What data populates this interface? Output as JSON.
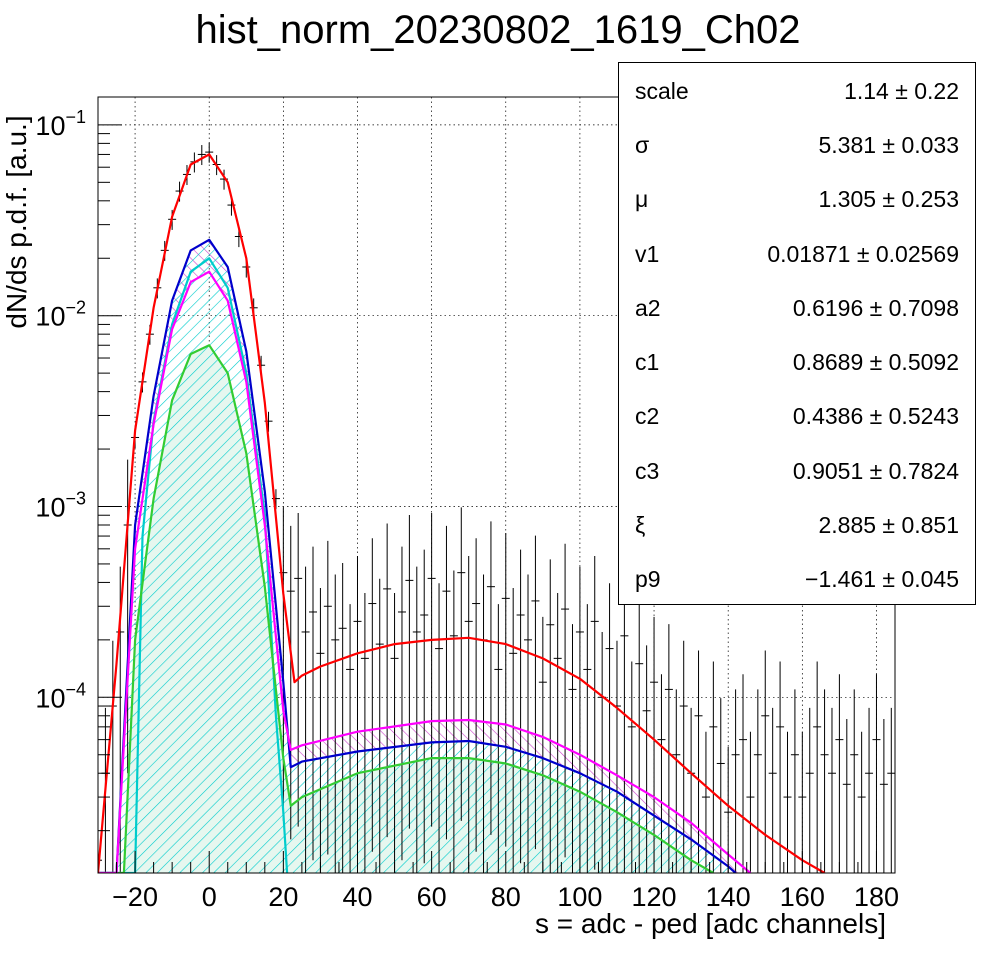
{
  "title": "hist_norm_20230802_1619_Ch02",
  "stats": [
    {
      "name": "scale",
      "value": "1.14 ± 0.22"
    },
    {
      "name": "σ",
      "value": "5.381 ± 0.033"
    },
    {
      "name": "μ",
      "value": "1.305 ± 0.253"
    },
    {
      "name": "v1",
      "value": "0.01871 ± 0.02569"
    },
    {
      "name": "a2",
      "value": "0.6196 ± 0.7098"
    },
    {
      "name": "c1",
      "value": "0.8689 ± 0.5092"
    },
    {
      "name": "c2",
      "value": "0.4386 ± 0.5243"
    },
    {
      "name": "c3",
      "value": "0.9051 ± 0.7824"
    },
    {
      "name": "ξ",
      "value": "2.885 ± 0.851"
    },
    {
      "name": "p9",
      "value": "−1.461 ± 0.045"
    }
  ],
  "chart_data": {
    "type": "line",
    "title": "hist_norm_20230802_1619_Ch02",
    "xlabel": "s = adc - ped [adc channels]",
    "ylabel": "dN/ds p.d.f. [a.u.]",
    "xlim": [
      -30,
      185
    ],
    "ylim": [
      1.2e-05,
      0.14
    ],
    "yscale": "log",
    "grid": true,
    "xticks": [
      -20,
      0,
      20,
      40,
      60,
      80,
      100,
      120,
      140,
      160,
      180
    ],
    "yticks": [
      {
        "value": 0.0001,
        "base": "10",
        "exp": "−4"
      },
      {
        "value": 0.001,
        "base": "10",
        "exp": "−3"
      },
      {
        "value": 0.01,
        "base": "10",
        "exp": "−2"
      },
      {
        "value": 0.1,
        "base": "10",
        "exp": "−1"
      }
    ],
    "colors": {
      "total": "#ff0000",
      "blue": "#0000cc",
      "cyan": "#00cccc",
      "magenta": "#ff00ff",
      "green": "#33cc33",
      "data": "#000000"
    },
    "series": [
      {
        "color": "total",
        "points": [
          [
            -30,
            1.2e-05
          ],
          [
            -25,
            0.00015
          ],
          [
            -20,
            0.0025
          ],
          [
            -15,
            0.011
          ],
          [
            -10,
            0.033
          ],
          [
            -5,
            0.062
          ],
          [
            0,
            0.07
          ],
          [
            5,
            0.05
          ],
          [
            10,
            0.02
          ],
          [
            15,
            0.0035
          ],
          [
            20,
            0.00035
          ],
          [
            23,
            0.00012
          ],
          [
            25,
            0.00013
          ],
          [
            30,
            0.000145
          ],
          [
            40,
            0.00017
          ],
          [
            50,
            0.00019
          ],
          [
            60,
            0.0002
          ],
          [
            70,
            0.000205
          ],
          [
            80,
            0.00019
          ],
          [
            90,
            0.00016
          ],
          [
            100,
            0.000125
          ],
          [
            110,
            8.8e-05
          ],
          [
            120,
            6e-05
          ],
          [
            130,
            4e-05
          ],
          [
            140,
            2.7e-05
          ],
          [
            150,
            1.9e-05
          ],
          [
            160,
            1.4e-05
          ],
          [
            166,
            1.2e-05
          ]
        ]
      },
      {
        "color": "blue",
        "points": [
          [
            -30,
            1.2e-05
          ],
          [
            -25,
            1.2e-05
          ],
          [
            -20,
            0.0008
          ],
          [
            -15,
            0.0038
          ],
          [
            -10,
            0.012
          ],
          [
            -5,
            0.022
          ],
          [
            0,
            0.025
          ],
          [
            5,
            0.018
          ],
          [
            10,
            0.0065
          ],
          [
            15,
            0.0012
          ],
          [
            20,
            0.00012
          ],
          [
            22,
            4.3e-05
          ],
          [
            25,
            4.6e-05
          ],
          [
            40,
            5.2e-05
          ],
          [
            60,
            5.8e-05
          ],
          [
            70,
            5.9e-05
          ],
          [
            80,
            5.5e-05
          ],
          [
            90,
            4.8e-05
          ],
          [
            100,
            4e-05
          ],
          [
            110,
            3.2e-05
          ],
          [
            120,
            2.4e-05
          ],
          [
            130,
            1.8e-05
          ],
          [
            140,
            1.3e-05
          ],
          [
            142,
            1.2e-05
          ]
        ]
      },
      {
        "color": "cyan",
        "points": [
          [
            -30,
            1.2e-05
          ],
          [
            -20,
            1.2e-05
          ],
          [
            -18,
            0.0007
          ],
          [
            -15,
            0.0028
          ],
          [
            -10,
            0.009
          ],
          [
            -5,
            0.017
          ],
          [
            0,
            0.02
          ],
          [
            5,
            0.014
          ],
          [
            10,
            0.005
          ],
          [
            15,
            0.0009
          ],
          [
            18,
            8e-05
          ],
          [
            20,
            2.5e-05
          ],
          [
            21,
            1.2e-05
          ]
        ]
      },
      {
        "color": "magenta",
        "points": [
          [
            -30,
            1.2e-05
          ],
          [
            -25,
            1.2e-05
          ],
          [
            -20,
            0.0006
          ],
          [
            -15,
            0.0027
          ],
          [
            -10,
            0.0085
          ],
          [
            -5,
            0.015
          ],
          [
            0,
            0.017
          ],
          [
            5,
            0.012
          ],
          [
            10,
            0.0045
          ],
          [
            15,
            0.0008
          ],
          [
            20,
            8.5e-05
          ],
          [
            22,
            5.3e-05
          ],
          [
            25,
            5.6e-05
          ],
          [
            40,
            6.6e-05
          ],
          [
            60,
            7.5e-05
          ],
          [
            70,
            7.6e-05
          ],
          [
            80,
            7.2e-05
          ],
          [
            90,
            6.2e-05
          ],
          [
            100,
            5e-05
          ],
          [
            110,
            3.9e-05
          ],
          [
            120,
            3e-05
          ],
          [
            130,
            2.2e-05
          ],
          [
            140,
            1.5e-05
          ],
          [
            146,
            1.2e-05
          ]
        ]
      },
      {
        "color": "green",
        "points": [
          [
            -30,
            1.2e-05
          ],
          [
            -23,
            1.2e-05
          ],
          [
            -20,
            0.0002
          ],
          [
            -15,
            0.0011
          ],
          [
            -10,
            0.0036
          ],
          [
            -5,
            0.0063
          ],
          [
            0,
            0.007
          ],
          [
            5,
            0.005
          ],
          [
            10,
            0.0019
          ],
          [
            15,
            0.00038
          ],
          [
            20,
            4.8e-05
          ],
          [
            22,
            2.7e-05
          ],
          [
            25,
            3e-05
          ],
          [
            40,
            4e-05
          ],
          [
            60,
            4.8e-05
          ],
          [
            70,
            4.8e-05
          ],
          [
            80,
            4.5e-05
          ],
          [
            90,
            3.9e-05
          ],
          [
            100,
            3.2e-05
          ],
          [
            110,
            2.5e-05
          ],
          [
            120,
            1.9e-05
          ],
          [
            130,
            1.4e-05
          ],
          [
            136,
            1.2e-05
          ]
        ]
      }
    ],
    "hatched_bands": [
      {
        "upper": "magenta",
        "lower": "blue",
        "color": "magenta",
        "pattern": "hatch-magenta"
      },
      {
        "upper": "blue",
        "lower": "green",
        "color": "cyan",
        "pattern": "hatch-cyan"
      }
    ],
    "data_points": [
      [
        -30,
        1.4e-05
      ],
      [
        -28,
        4e-05
      ],
      [
        -26,
        9e-05
      ],
      [
        -24,
        0.00022
      ],
      [
        -22,
        0.0008
      ],
      [
        -20,
        0.0023
      ],
      [
        -18,
        0.0045
      ],
      [
        -16,
        0.008
      ],
      [
        -14,
        0.014
      ],
      [
        -12,
        0.022
      ],
      [
        -10,
        0.032
      ],
      [
        -8,
        0.045
      ],
      [
        -6,
        0.055
      ],
      [
        -4,
        0.064
      ],
      [
        -2,
        0.07
      ],
      [
        0,
        0.072
      ],
      [
        2,
        0.062
      ],
      [
        4,
        0.052
      ],
      [
        6,
        0.038
      ],
      [
        8,
        0.026
      ],
      [
        10,
        0.018
      ],
      [
        12,
        0.011
      ],
      [
        14,
        0.0055
      ],
      [
        16,
        0.0028
      ],
      [
        18,
        0.0011
      ],
      [
        20,
        0.00045
      ],
      [
        22,
        0.00036
      ],
      [
        24,
        0.00042
      ],
      [
        26,
        0.00022
      ],
      [
        28,
        0.00028
      ],
      [
        30,
        0.00017
      ],
      [
        32,
        0.0003
      ],
      [
        34,
        0.0002
      ],
      [
        36,
        0.00023
      ],
      [
        38,
        0.00014
      ],
      [
        40,
        0.00025
      ],
      [
        42,
        0.00016
      ],
      [
        44,
        0.00031
      ],
      [
        46,
        0.00019
      ],
      [
        48,
        0.00037
      ],
      [
        50,
        0.00016
      ],
      [
        52,
        0.00028
      ],
      [
        54,
        0.00041
      ],
      [
        56,
        0.00022
      ],
      [
        58,
        0.00027
      ],
      [
        60,
        0.00042
      ],
      [
        62,
        0.00018
      ],
      [
        64,
        0.00036
      ],
      [
        66,
        0.00021
      ],
      [
        68,
        0.00045
      ],
      [
        70,
        0.00025
      ],
      [
        72,
        0.00031
      ],
      [
        74,
        0.0002
      ],
      [
        76,
        0.00038
      ],
      [
        78,
        0.00014
      ],
      [
        80,
        0.00033
      ],
      [
        82,
        0.00017
      ],
      [
        84,
        0.00027
      ],
      [
        86,
        0.0002
      ],
      [
        88,
        0.00032
      ],
      [
        90,
        0.00012
      ],
      [
        92,
        0.00024
      ],
      [
        94,
        0.00016
      ],
      [
        96,
        0.00029
      ],
      [
        98,
        0.00011
      ],
      [
        100,
        0.00022
      ],
      [
        102,
        0.00014
      ],
      [
        104,
        0.00025
      ],
      [
        106,
        0.0001
      ],
      [
        108,
        0.00018
      ],
      [
        110,
        9e-05
      ],
      [
        112,
        0.00021
      ],
      [
        114,
        7e-05
      ],
      [
        116,
        0.00015
      ],
      [
        118,
        8.5e-05
      ],
      [
        120,
        0.00012
      ],
      [
        122,
        6e-05
      ],
      [
        124,
        0.00011
      ],
      [
        126,
        5e-05
      ],
      [
        128,
        9e-05
      ],
      [
        130,
        4e-05
      ],
      [
        132,
        8e-05
      ],
      [
        134,
        3e-05
      ],
      [
        136,
        7e-05
      ],
      [
        138,
        4.5e-05
      ],
      [
        140,
        2.5e-05
      ],
      [
        142,
        5e-05
      ],
      [
        144,
        6e-05
      ],
      [
        146,
        3e-05
      ],
      [
        148,
        5e-05
      ],
      [
        150,
        8e-05
      ],
      [
        152,
        4e-05
      ],
      [
        154,
        7e-05
      ],
      [
        156,
        3e-05
      ],
      [
        158,
        5e-05
      ],
      [
        160,
        3e-05
      ],
      [
        162,
        4e-05
      ],
      [
        164,
        7e-05
      ],
      [
        166,
        5e-05
      ],
      [
        168,
        4e-05
      ],
      [
        170,
        6e-05
      ],
      [
        172,
        3.5e-05
      ],
      [
        174,
        5e-05
      ],
      [
        176,
        3e-05
      ],
      [
        178,
        4e-05
      ],
      [
        180,
        6e-05
      ],
      [
        182,
        3.5e-05
      ],
      [
        184,
        4e-05
      ]
    ]
  }
}
